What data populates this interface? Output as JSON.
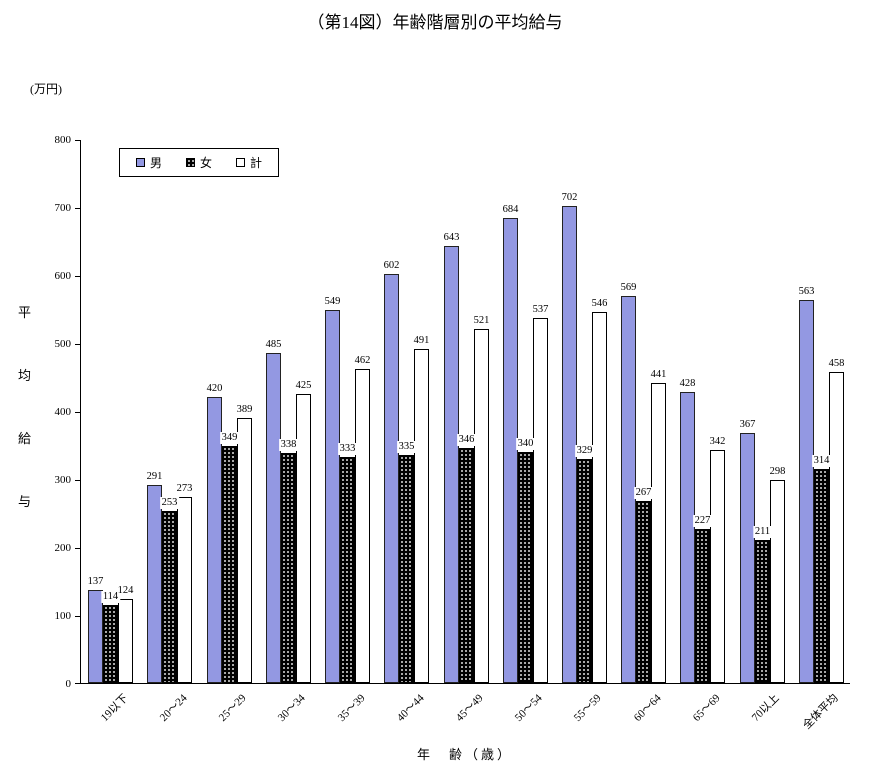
{
  "chart_data": {
    "type": "bar",
    "title": "（第14図）年齢階層別の平均給与",
    "unit_label": "(万円)",
    "ylabel": "平均給与",
    "xlabel": "年　齢（歳）",
    "ylim": [
      0,
      800
    ],
    "ytick_interval": 100,
    "grid": false,
    "legend_position": "top-left",
    "categories": [
      "19以下",
      "20～24",
      "25～29",
      "30～34",
      "35～39",
      "40～44",
      "45～49",
      "50～54",
      "55～59",
      "60～64",
      "65～69",
      "70以上",
      "全体平均"
    ],
    "series": [
      {
        "name": "男",
        "key": "male",
        "color": "#9398e2",
        "values": [
          137,
          291,
          420,
          485,
          549,
          602,
          643,
          684,
          702,
          569,
          428,
          367,
          563
        ]
      },
      {
        "name": "女",
        "key": "female",
        "color": "#000000",
        "pattern": "white-dots",
        "values": [
          114,
          253,
          349,
          338,
          333,
          335,
          346,
          340,
          329,
          267,
          227,
          211,
          314
        ]
      },
      {
        "name": "計",
        "key": "total",
        "color": "#ffffff",
        "values": [
          124,
          273,
          389,
          425,
          462,
          491,
          521,
          537,
          546,
          441,
          342,
          298,
          458
        ]
      }
    ]
  }
}
